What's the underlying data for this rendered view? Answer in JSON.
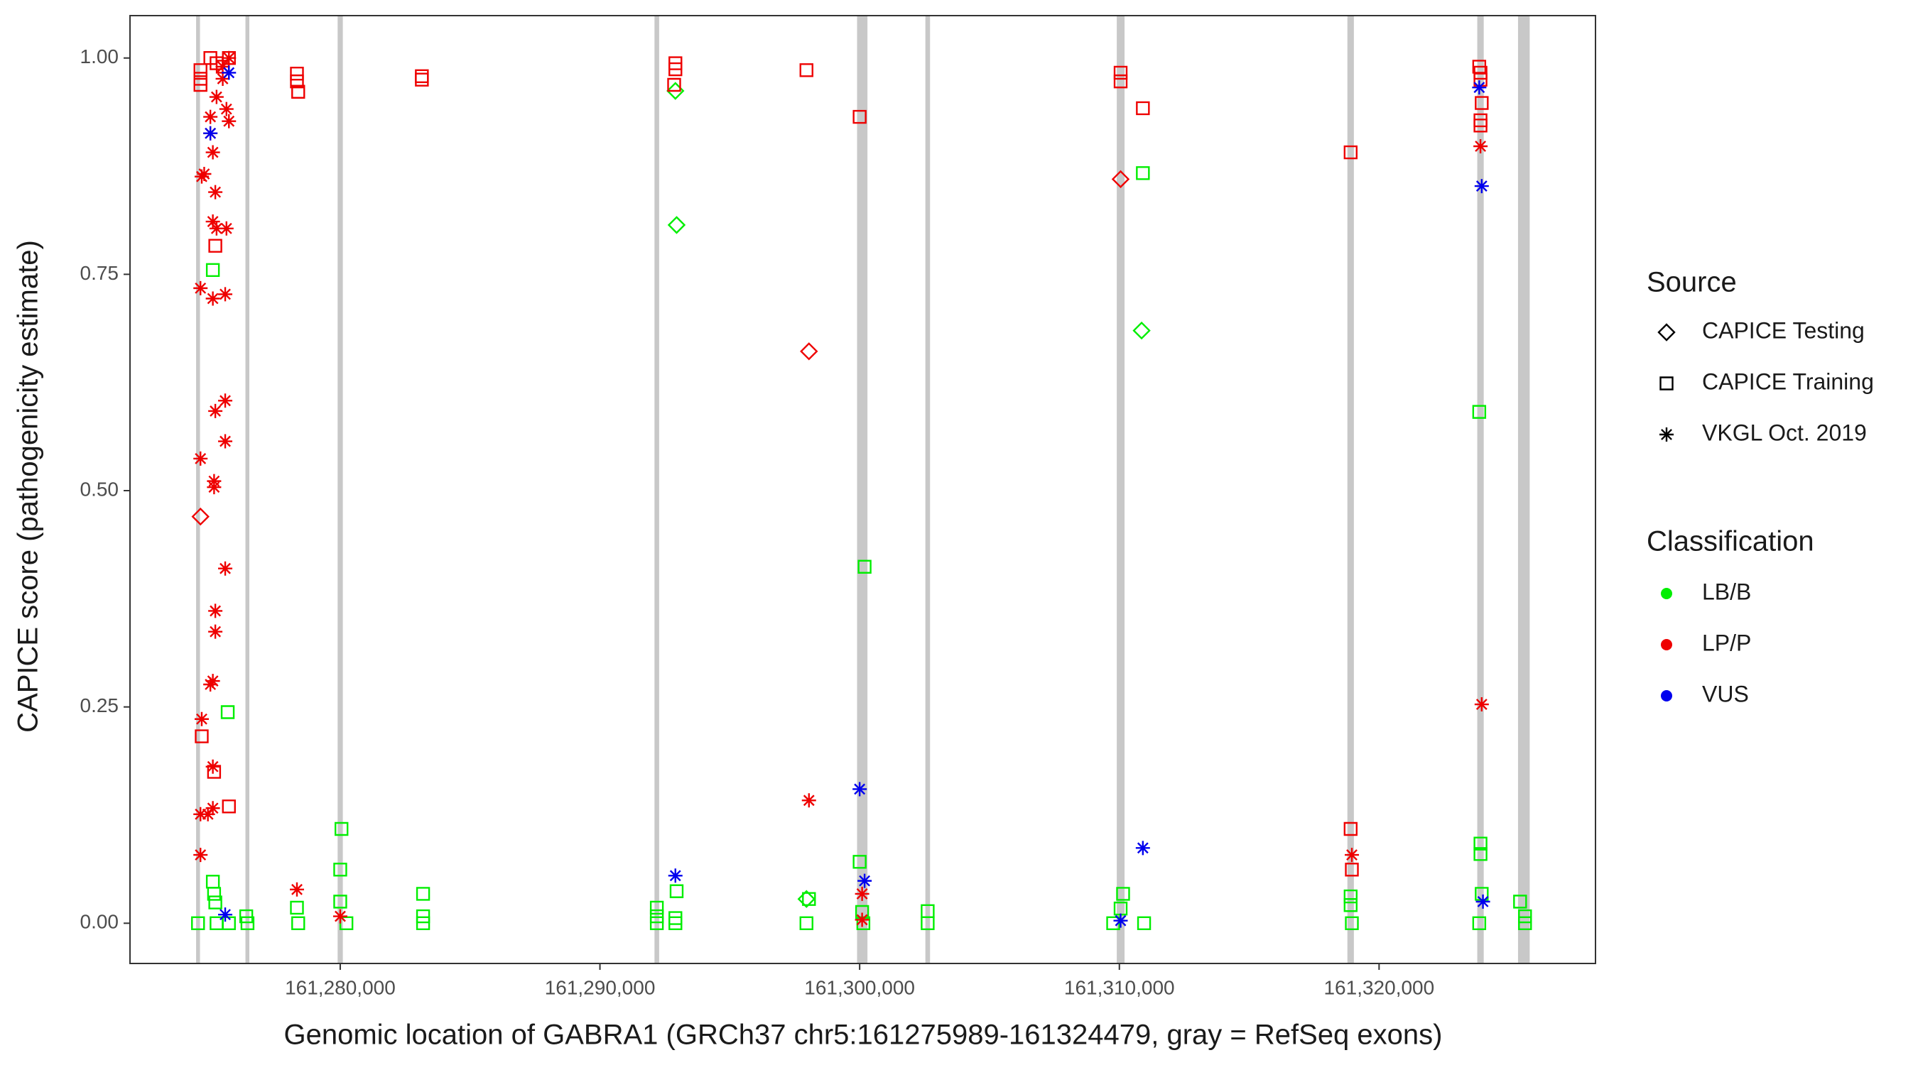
{
  "chart_data": {
    "type": "scatter",
    "xlabel": "Genomic location of GABRA1 (GRCh37 chr5:161275989-161324479, gray = RefSeq exons)",
    "ylabel": "CAPICE score (pathogenicity estimate)",
    "xlim": [
      161271905,
      161328333
    ],
    "ylim": [
      -0.0465,
      1.049
    ],
    "xticks": [
      {
        "value": 161280000,
        "label": "161,280,000"
      },
      {
        "value": 161290000,
        "label": "161,290,000"
      },
      {
        "value": 161300000,
        "label": "161,300,000"
      },
      {
        "value": 161310000,
        "label": "161,310,000"
      },
      {
        "value": 161320000,
        "label": "161,320,000"
      }
    ],
    "yticks": [
      {
        "value": 0,
        "label": "0.00"
      },
      {
        "value": 0.25,
        "label": "0.25"
      },
      {
        "value": 0.5,
        "label": "0.50"
      },
      {
        "value": 0.75,
        "label": "0.75"
      },
      {
        "value": 1,
        "label": "1.00"
      }
    ],
    "grid": false,
    "exon_color": "#c8c8c8",
    "exons": [
      [
        161274450,
        161274600
      ],
      [
        161276350,
        161276500
      ],
      [
        161279900,
        161280100
      ],
      [
        161292100,
        161292280
      ],
      [
        161299900,
        161300300
      ],
      [
        161302530,
        161302710
      ],
      [
        161309900,
        161310200
      ],
      [
        161318780,
        161319030
      ],
      [
        161323780,
        161324030
      ],
      [
        161325350,
        161325800
      ]
    ],
    "source_title": "Source",
    "classification_title": "Classification",
    "classes": [
      {
        "name": "LB/B",
        "color": "#00ee00"
      },
      {
        "name": "LP/P",
        "color": "#ee0000"
      },
      {
        "name": "VUS",
        "color": "#0000ee"
      }
    ],
    "series": [
      {
        "name": "CAPICE Testing",
        "shape": "diamond",
        "x": [
          161274619,
          161292905,
          161292952,
          161298048,
          161310048,
          161310857,
          161297952
        ],
        "y": [
          0.47,
          0.962,
          0.807,
          0.661,
          0.86,
          0.685,
          0.028
        ],
        "classification": [
          "LP/P",
          "LB/B",
          "LB/B",
          "LP/P",
          "LP/P",
          "LB/B",
          "LB/B"
        ]
      },
      {
        "name": "CAPICE Training",
        "shape": "square",
        "x": [
          161274619,
          161274619,
          161274619,
          161275000,
          161275238,
          161275476,
          161275714,
          161275190,
          161274667,
          161275143,
          161275714,
          161278333,
          161278333,
          161278381,
          161283143,
          161283143,
          161292905,
          161292905,
          161292857,
          161297952,
          161300000,
          161310048,
          161310048,
          161310905,
          161318905,
          161318905,
          161318952,
          161323857,
          161323905,
          161323905,
          161323952,
          161323905,
          161323905,
          161274524,
          161275095,
          161275095,
          161275143,
          161275190,
          161275238,
          161275714,
          161275667,
          161276381,
          161276429,
          161278333,
          161278381,
          161280048,
          161280000,
          161280000,
          161280238,
          161283190,
          161283190,
          161283190,
          161292190,
          161292190,
          161292190,
          161292952,
          161292905,
          161292905,
          161297952,
          161298048,
          161300000,
          161300190,
          161300095,
          161300143,
          161302619,
          161302619,
          161310143,
          161310048,
          161309762,
          161310905,
          161310952,
          161318905,
          161318905,
          161318952,
          161323857,
          161323905,
          161323905,
          161323952,
          161323857,
          161325429,
          161325619,
          161325619
        ],
        "y": [
          0.986,
          0.976,
          0.969,
          1.0,
          0.994,
          0.99,
          1.0,
          0.783,
          0.216,
          0.175,
          0.135,
          0.982,
          0.973,
          0.961,
          0.979,
          0.975,
          0.994,
          0.987,
          0.969,
          0.986,
          0.932,
          0.983,
          0.973,
          0.942,
          0.891,
          0.109,
          0.062,
          0.99,
          0.983,
          0.975,
          0.948,
          0.928,
          0.922,
          0,
          0.755,
          0.048,
          0.034,
          0.024,
          0,
          0,
          0.244,
          0.008,
          0,
          0.018,
          0,
          0.109,
          0.062,
          0.025,
          0,
          0.034,
          0.008,
          0,
          0.018,
          0.008,
          0,
          0.037,
          0.006,
          0,
          0,
          0.028,
          0.071,
          0.412,
          0.013,
          0,
          0.014,
          0,
          0.034,
          0.017,
          0,
          0.867,
          0,
          0.031,
          0.021,
          0,
          0.591,
          0.092,
          0.08,
          0.034,
          0,
          0.025,
          0.008,
          0
        ],
        "classification": [
          "LP/P",
          "LP/P",
          "LP/P",
          "LP/P",
          "LP/P",
          "LP/P",
          "LP/P",
          "LP/P",
          "LP/P",
          "LP/P",
          "LP/P",
          "LP/P",
          "LP/P",
          "LP/P",
          "LP/P",
          "LP/P",
          "LP/P",
          "LP/P",
          "LP/P",
          "LP/P",
          "LP/P",
          "LP/P",
          "LP/P",
          "LP/P",
          "LP/P",
          "LP/P",
          "LP/P",
          "LP/P",
          "LP/P",
          "LP/P",
          "LP/P",
          "LP/P",
          "LP/P",
          "LB/B",
          "LB/B",
          "LB/B",
          "LB/B",
          "LB/B",
          "LB/B",
          "LB/B",
          "LB/B",
          "LB/B",
          "LB/B",
          "LB/B",
          "LB/B",
          "LB/B",
          "LB/B",
          "LB/B",
          "LB/B",
          "LB/B",
          "LB/B",
          "LB/B",
          "LB/B",
          "LB/B",
          "LB/B",
          "LB/B",
          "LB/B",
          "LB/B",
          "LB/B",
          "LB/B",
          "LB/B",
          "LB/B",
          "LB/B",
          "LB/B",
          "LB/B",
          "LB/B",
          "LB/B",
          "LB/B",
          "LB/B",
          "LB/B",
          "LB/B",
          "LB/B",
          "LB/B",
          "LB/B",
          "LB/B",
          "LB/B",
          "LB/B",
          "LB/B",
          "LB/B",
          "LB/B",
          "LB/B",
          "LB/B"
        ]
      },
      {
        "name": "VKGL Oct. 2019",
        "shape": "asterisk",
        "x": [
          161274762,
          161274667,
          161274619,
          161274619,
          161274667,
          161274619,
          161274619,
          161274905,
          161275000,
          161275095,
          161275095,
          161275190,
          161275095,
          161275238,
          161275190,
          161275143,
          161275143,
          161275190,
          161275190,
          161275095,
          161275000,
          161275095,
          161275095,
          161275000,
          161275238,
          161275476,
          161275619,
          161275714,
          161275619,
          161275571,
          161275571,
          161275571,
          161275571,
          161275476,
          161275714,
          161278333,
          161280000,
          161298048,
          161300095,
          161300095,
          161318952,
          161323905,
          161323952,
          161275000,
          161275571,
          161275714,
          161300000,
          161300190,
          161292905,
          161310048,
          161310905,
          161323857,
          161323952,
          161324000
        ],
        "y": [
          0.866,
          0.863,
          0.734,
          0.537,
          0.236,
          0.126,
          0.079,
          0.126,
          0.913,
          0.891,
          0.811,
          0.845,
          0.722,
          0.803,
          0.592,
          0.511,
          0.504,
          0.361,
          0.337,
          0.28,
          0.276,
          0.181,
          0.133,
          0.932,
          0.955,
          0.976,
          0.941,
          0.927,
          0.803,
          0.727,
          0.604,
          0.557,
          0.41,
          0.99,
          1.0,
          0.039,
          0.008,
          0.142,
          0.034,
          0.004,
          0.079,
          0.898,
          0.253,
          0.913,
          0.01,
          0.983,
          0.155,
          0.049,
          0.055,
          0.003,
          0.087,
          0.966,
          0.852,
          0.025
        ],
        "classification": [
          "LP/P",
          "LP/P",
          "LP/P",
          "LP/P",
          "LP/P",
          "LP/P",
          "LP/P",
          "LP/P",
          "LP/P",
          "LP/P",
          "LP/P",
          "LP/P",
          "LP/P",
          "LP/P",
          "LP/P",
          "LP/P",
          "LP/P",
          "LP/P",
          "LP/P",
          "LP/P",
          "LP/P",
          "LP/P",
          "LP/P",
          "LP/P",
          "LP/P",
          "LP/P",
          "LP/P",
          "LP/P",
          "LP/P",
          "LP/P",
          "LP/P",
          "LP/P",
          "LP/P",
          "LP/P",
          "LP/P",
          "LP/P",
          "LP/P",
          "LP/P",
          "LP/P",
          "LP/P",
          "LP/P",
          "LP/P",
          "LP/P",
          "VUS",
          "VUS",
          "VUS",
          "VUS",
          "VUS",
          "VUS",
          "VUS",
          "VUS",
          "VUS",
          "VUS",
          "VUS"
        ]
      }
    ]
  }
}
